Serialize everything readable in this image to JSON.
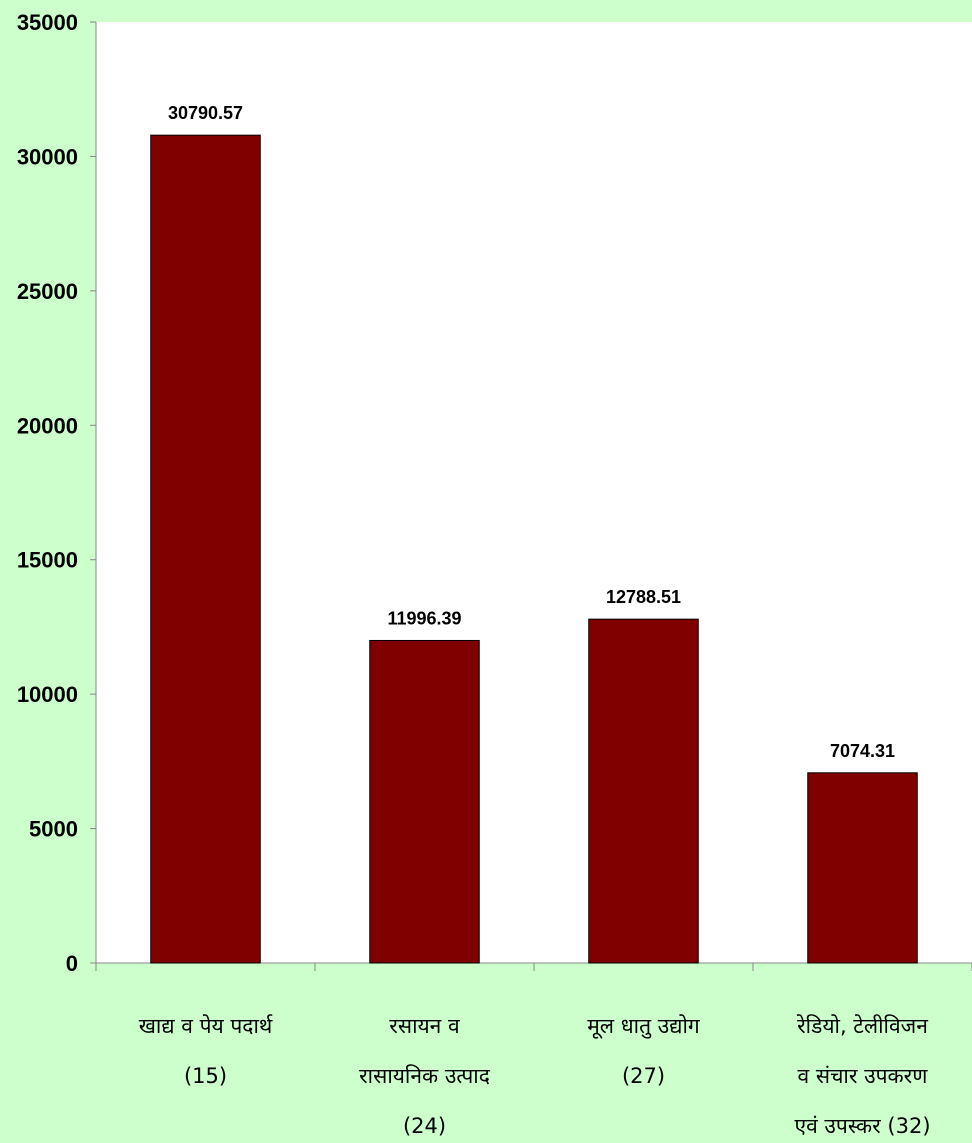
{
  "chart_data": {
    "type": "bar",
    "title": "",
    "xlabel": "",
    "ylabel": "",
    "ylim": [
      0,
      35000
    ],
    "yticks": [
      0,
      5000,
      10000,
      15000,
      20000,
      25000,
      30000,
      35000
    ],
    "grid": false,
    "legend": "none",
    "bar_color": "#800000",
    "plot_background": "#ffffff",
    "page_background": "#ccffcc",
    "categories": [
      {
        "lines": [
          "खाद्य व पेय पदार्थ",
          "(15)"
        ]
      },
      {
        "lines": [
          "रसायन व",
          "रासायनिक उत्पाद",
          "(24)"
        ]
      },
      {
        "lines": [
          "मूल धातु उद्योग",
          "(27)"
        ]
      },
      {
        "lines": [
          "रेडियो, टेलीविजन",
          "व संचार उपकरण",
          "एवं उपस्कर (32)"
        ]
      }
    ],
    "values": [
      30790.57,
      11996.39,
      12788.51,
      7074.31
    ],
    "value_labels": [
      "30790.57",
      "11996.39",
      "12788.51",
      "7074.31"
    ]
  }
}
